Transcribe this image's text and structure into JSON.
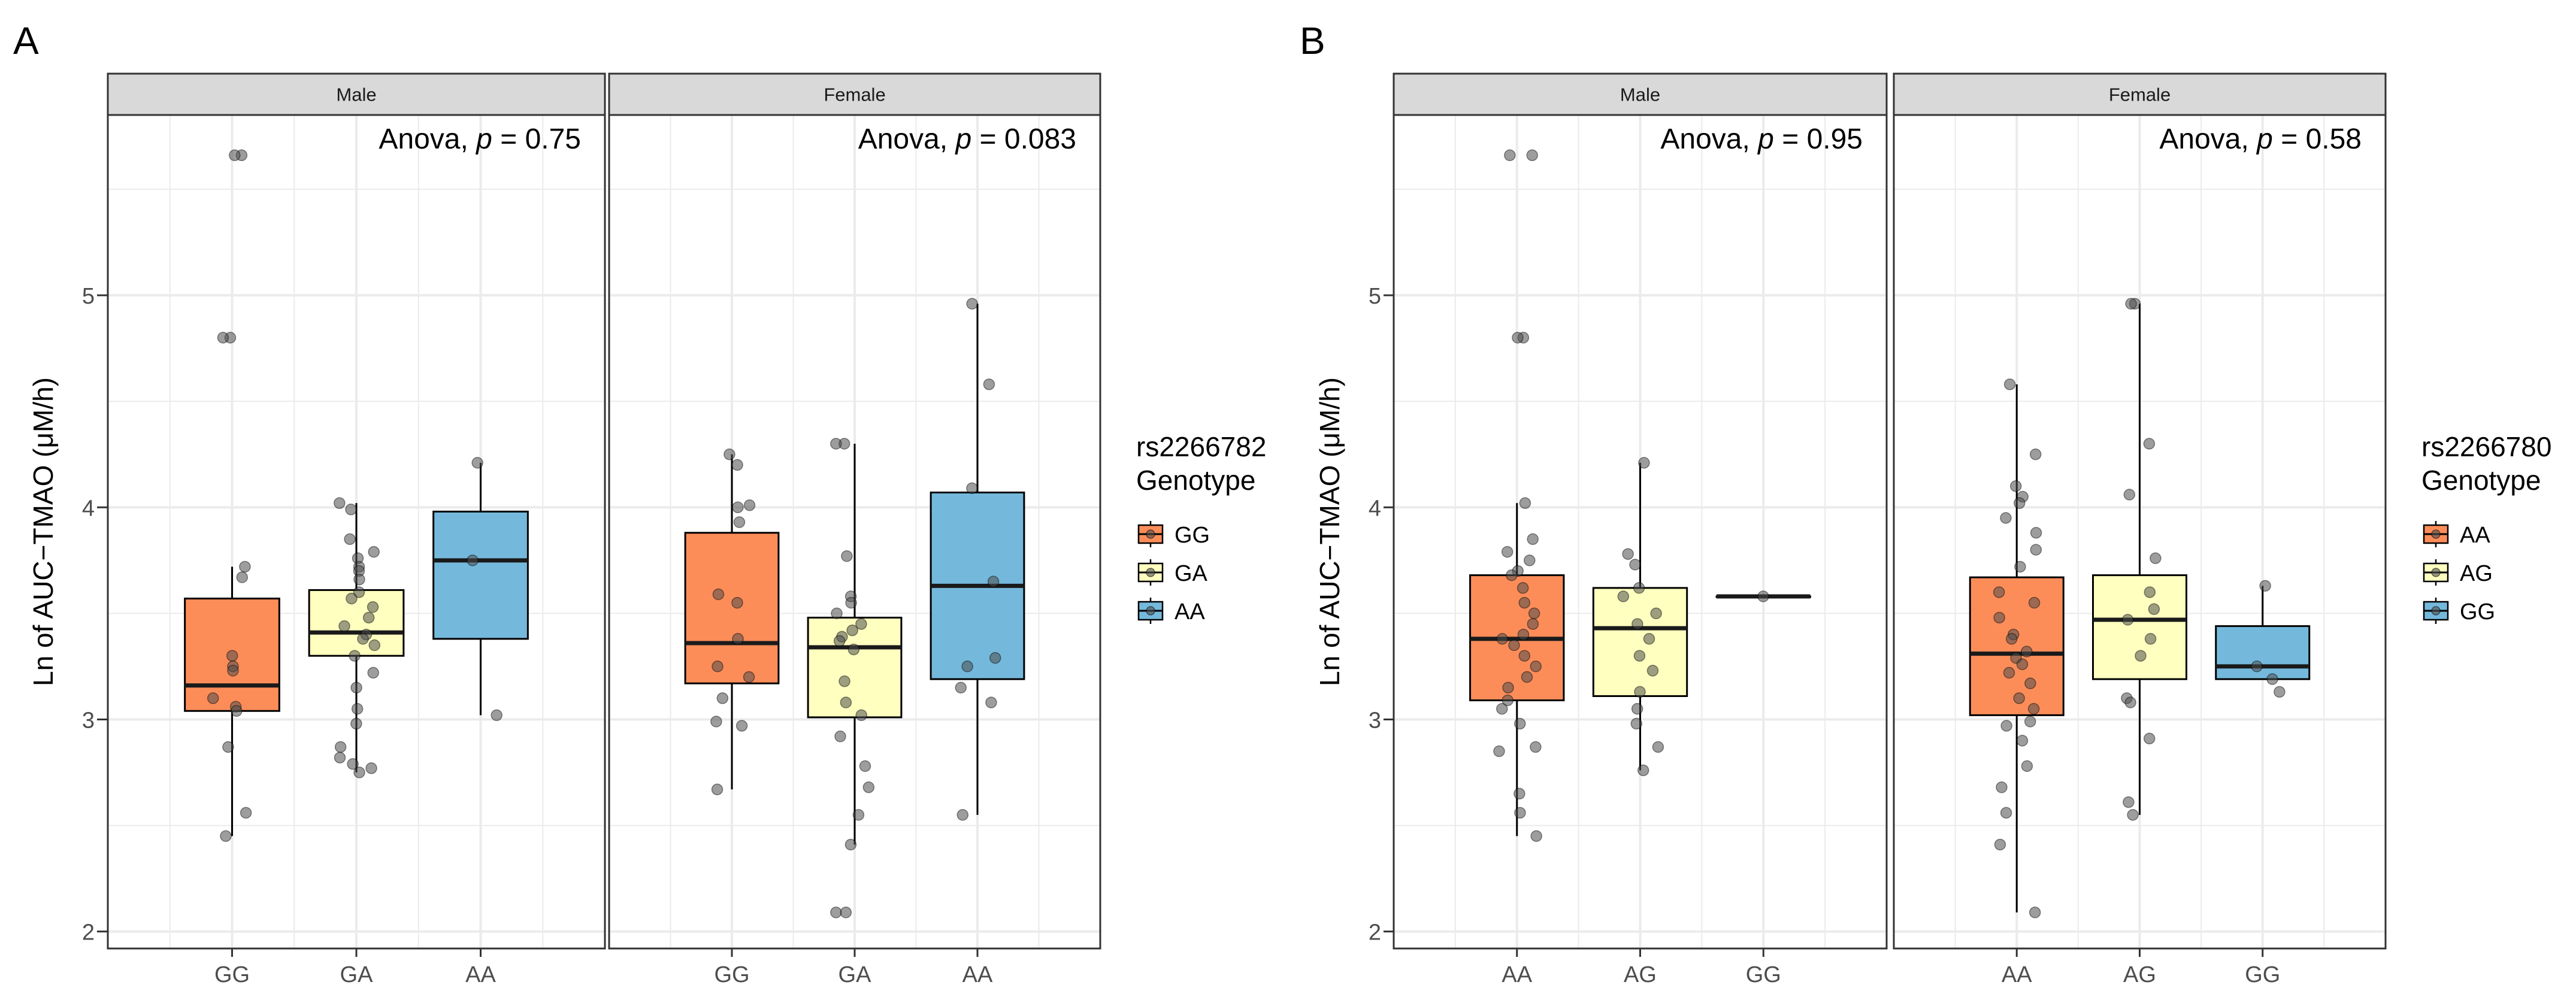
{
  "figure": {
    "ylabel": "Ln of AUC−TMAO (μM/h)",
    "colors": {
      "orange": "#FC8D59",
      "yellow": "#FFFFBF",
      "blue": "#74B9DC",
      "strip": "#D9D9D9",
      "grid": "#EBEBEB",
      "points": "#4D4D4D"
    }
  },
  "chart_data": [
    {
      "type": "box",
      "panel_letter": "A",
      "title": "",
      "ylabel": "Ln of AUC−TMAO (μM/h)",
      "xlabel": "",
      "ylim": [
        1.92,
        5.85
      ],
      "yticks": [
        2,
        3,
        4,
        5
      ],
      "grid": true,
      "legend": {
        "title_line1": "rs2266782",
        "title_line2": "Genotype",
        "position": "right",
        "entries": [
          {
            "label": "GG",
            "color": "#FC8D59"
          },
          {
            "label": "GA",
            "color": "#FFFFBF"
          },
          {
            "label": "AA",
            "color": "#74B9DC"
          }
        ]
      },
      "facets": [
        {
          "strip": "Male",
          "annotation_prefix": "Anova, ",
          "annotation_p": "p",
          "annotation_value": " = 0.75",
          "categories": [
            "GG",
            "GA",
            "AA"
          ],
          "boxes": [
            {
              "label": "GG",
              "color": "#FC8D59",
              "whisker_low": 2.45,
              "q1": 3.04,
              "median": 3.16,
              "q3": 3.57,
              "whisker_high": 3.72,
              "points": [
                5.66,
                5.66,
                4.8,
                4.8,
                3.72,
                3.67,
                3.3,
                3.25,
                3.23,
                3.1,
                3.06,
                3.04,
                2.87,
                2.56,
                2.45
              ]
            },
            {
              "label": "GA",
              "color": "#FFFFBF",
              "whisker_low": 2.75,
              "q1": 3.3,
              "median": 3.41,
              "q3": 3.61,
              "whisker_high": 4.02,
              "points": [
                4.02,
                3.99,
                3.85,
                3.79,
                3.76,
                3.72,
                3.7,
                3.66,
                3.6,
                3.57,
                3.53,
                3.48,
                3.44,
                3.4,
                3.38,
                3.35,
                3.3,
                3.22,
                3.15,
                3.05,
                2.98,
                2.87,
                2.82,
                2.79,
                2.77,
                2.75
              ]
            },
            {
              "label": "AA",
              "color": "#74B9DC",
              "whisker_low": 3.02,
              "q1": 3.38,
              "median": 3.75,
              "q3": 3.98,
              "whisker_high": 4.21,
              "points": [
                4.21,
                3.75,
                3.02
              ]
            }
          ]
        },
        {
          "strip": "Female",
          "annotation_prefix": "Anova, ",
          "annotation_p": "p",
          "annotation_value": " = 0.083",
          "categories": [
            "GG",
            "GA",
            "AA"
          ],
          "boxes": [
            {
              "label": "GG",
              "color": "#FC8D59",
              "whisker_low": 2.67,
              "q1": 3.17,
              "median": 3.36,
              "q3": 3.88,
              "whisker_high": 4.25,
              "points": [
                4.25,
                4.2,
                4.01,
                4.0,
                3.93,
                3.59,
                3.55,
                3.38,
                3.25,
                3.2,
                3.1,
                2.99,
                2.97,
                2.67
              ]
            },
            {
              "label": "GA",
              "color": "#FFFFBF",
              "whisker_low": 2.41,
              "q1": 3.01,
              "median": 3.34,
              "q3": 3.48,
              "whisker_high": 4.3,
              "points": [
                4.3,
                4.3,
                3.77,
                3.58,
                3.55,
                3.5,
                3.45,
                3.42,
                3.39,
                3.37,
                3.33,
                3.18,
                3.08,
                3.02,
                2.92,
                2.78,
                2.68,
                2.55,
                2.41,
                2.09,
                2.09
              ]
            },
            {
              "label": "AA",
              "color": "#74B9DC",
              "whisker_low": 2.55,
              "q1": 3.19,
              "median": 3.63,
              "q3": 4.07,
              "whisker_high": 4.96,
              "points": [
                4.96,
                4.58,
                4.09,
                3.65,
                3.29,
                3.25,
                3.15,
                3.08,
                2.55
              ]
            }
          ]
        }
      ]
    },
    {
      "type": "box",
      "panel_letter": "B",
      "title": "",
      "ylabel": "Ln of AUC−TMAO (μM/h)",
      "xlabel": "",
      "ylim": [
        1.92,
        5.85
      ],
      "yticks": [
        2,
        3,
        4,
        5
      ],
      "grid": true,
      "legend": {
        "title_line1": "rs2266780",
        "title_line2": "Genotype",
        "position": "right",
        "entries": [
          {
            "label": "AA",
            "color": "#FC8D59"
          },
          {
            "label": "AG",
            "color": "#FFFFBF"
          },
          {
            "label": "GG",
            "color": "#74B9DC"
          }
        ]
      },
      "facets": [
        {
          "strip": "Male",
          "annotation_prefix": "Anova, ",
          "annotation_p": "p",
          "annotation_value": " = 0.95",
          "categories": [
            "AA",
            "AG",
            "GG"
          ],
          "boxes": [
            {
              "label": "AA",
              "color": "#FC8D59",
              "whisker_low": 2.45,
              "q1": 3.09,
              "median": 3.38,
              "q3": 3.68,
              "whisker_high": 4.02,
              "points": [
                5.66,
                5.66,
                4.8,
                4.8,
                4.02,
                3.85,
                3.79,
                3.75,
                3.7,
                3.68,
                3.62,
                3.55,
                3.5,
                3.45,
                3.4,
                3.38,
                3.35,
                3.3,
                3.25,
                3.2,
                3.15,
                3.09,
                3.05,
                2.98,
                2.87,
                2.85,
                2.65,
                2.56,
                2.45
              ]
            },
            {
              "label": "AG",
              "color": "#FFFFBF",
              "whisker_low": 2.76,
              "q1": 3.11,
              "median": 3.43,
              "q3": 3.62,
              "whisker_high": 4.21,
              "points": [
                4.21,
                3.78,
                3.73,
                3.62,
                3.58,
                3.5,
                3.45,
                3.38,
                3.3,
                3.23,
                3.13,
                3.05,
                2.98,
                2.87,
                2.76
              ]
            },
            {
              "label": "GG",
              "color": "#74B9DC",
              "whisker_low": 3.58,
              "q1": 3.58,
              "median": 3.58,
              "q3": 3.58,
              "whisker_high": 3.58,
              "points": [
                3.58
              ]
            }
          ]
        },
        {
          "strip": "Female",
          "annotation_prefix": "Anova, ",
          "annotation_p": "p",
          "annotation_value": " = 0.58",
          "categories": [
            "AA",
            "AG",
            "GG"
          ],
          "boxes": [
            {
              "label": "AA",
              "color": "#FC8D59",
              "whisker_low": 2.09,
              "q1": 3.02,
              "median": 3.31,
              "q3": 3.67,
              "whisker_high": 4.58,
              "points": [
                4.58,
                4.25,
                4.1,
                4.05,
                4.02,
                3.95,
                3.88,
                3.8,
                3.72,
                3.6,
                3.55,
                3.48,
                3.4,
                3.38,
                3.32,
                3.29,
                3.26,
                3.22,
                3.17,
                3.1,
                3.05,
                2.99,
                2.97,
                2.9,
                2.78,
                2.68,
                2.56,
                2.41,
                2.09
              ]
            },
            {
              "label": "AG",
              "color": "#FFFFBF",
              "whisker_low": 2.55,
              "q1": 3.19,
              "median": 3.47,
              "q3": 3.68,
              "whisker_high": 4.96,
              "points": [
                4.96,
                4.96,
                4.3,
                4.06,
                3.76,
                3.6,
                3.52,
                3.47,
                3.38,
                3.3,
                3.1,
                3.08,
                2.91,
                2.61,
                2.55
              ]
            },
            {
              "label": "GG",
              "color": "#74B9DC",
              "whisker_low": 3.19,
              "q1": 3.19,
              "median": 3.25,
              "q3": 3.44,
              "whisker_high": 3.63,
              "points": [
                3.63,
                3.25,
                3.19,
                3.13
              ]
            }
          ]
        }
      ]
    }
  ]
}
